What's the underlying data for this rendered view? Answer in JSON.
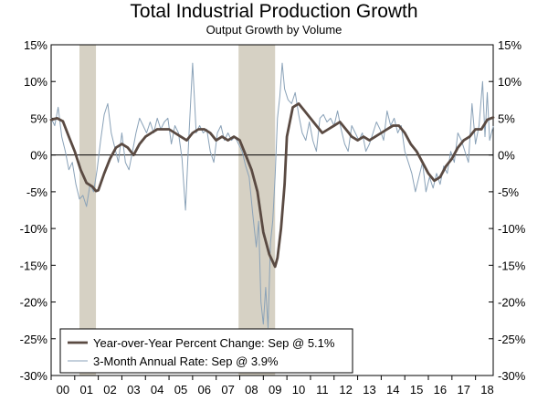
{
  "chart_data": {
    "type": "line",
    "title": "Total Industrial Production Growth",
    "subtitle": "Output Growth by Volume",
    "xlabel": "",
    "ylabel": "",
    "x_range": [
      2000.0,
      2018.75
    ],
    "ylim": [
      -30,
      15
    ],
    "y_ticks": [
      15,
      10,
      5,
      0,
      -5,
      -10,
      -15,
      -20,
      -25,
      -30
    ],
    "y_tick_labels": [
      "15%",
      "10%",
      "5%",
      "0%",
      "-5%",
      "-10%",
      "-15%",
      "-20%",
      "-25%",
      "-30%"
    ],
    "x_tick_labels": [
      "00",
      "01",
      "02",
      "03",
      "04",
      "05",
      "06",
      "07",
      "08",
      "09",
      "10",
      "11",
      "12",
      "13",
      "14",
      "15",
      "16",
      "17",
      "18"
    ],
    "recessions": [
      [
        2001.2,
        2001.9
      ],
      [
        2007.95,
        2009.5
      ]
    ],
    "legend_position": "bottom-left",
    "series": [
      {
        "name": "Year-over-Year Percent Change: Sep @ 5.1%",
        "color": "#5a4a42",
        "style": "thick",
        "points": [
          [
            2000.0,
            4.8
          ],
          [
            2000.25,
            5.0
          ],
          [
            2000.5,
            4.6
          ],
          [
            2000.75,
            2.5
          ],
          [
            2001.0,
            0.5
          ],
          [
            2001.25,
            -2.0
          ],
          [
            2001.5,
            -3.8
          ],
          [
            2001.75,
            -4.3
          ],
          [
            2001.9,
            -4.9
          ],
          [
            2002.0,
            -4.8
          ],
          [
            2002.25,
            -2.5
          ],
          [
            2002.5,
            -0.5
          ],
          [
            2002.75,
            1.0
          ],
          [
            2003.0,
            1.5
          ],
          [
            2003.25,
            1.0
          ],
          [
            2003.5,
            0.0
          ],
          [
            2003.75,
            1.5
          ],
          [
            2004.0,
            2.5
          ],
          [
            2004.25,
            3.0
          ],
          [
            2004.5,
            3.5
          ],
          [
            2004.75,
            3.5
          ],
          [
            2005.0,
            3.5
          ],
          [
            2005.25,
            3.0
          ],
          [
            2005.5,
            2.5
          ],
          [
            2005.75,
            2.0
          ],
          [
            2006.0,
            3.0
          ],
          [
            2006.25,
            3.5
          ],
          [
            2006.5,
            3.5
          ],
          [
            2006.75,
            3.0
          ],
          [
            2007.0,
            2.0
          ],
          [
            2007.25,
            2.5
          ],
          [
            2007.5,
            2.0
          ],
          [
            2007.75,
            2.5
          ],
          [
            2008.0,
            2.0
          ],
          [
            2008.25,
            0.0
          ],
          [
            2008.5,
            -2.0
          ],
          [
            2008.75,
            -5.0
          ],
          [
            2009.0,
            -10.5
          ],
          [
            2009.25,
            -13.5
          ],
          [
            2009.5,
            -15.2
          ],
          [
            2009.6,
            -14.0
          ],
          [
            2009.75,
            -10.0
          ],
          [
            2009.9,
            -4.0
          ],
          [
            2010.0,
            2.5
          ],
          [
            2010.25,
            6.5
          ],
          [
            2010.5,
            7.0
          ],
          [
            2010.75,
            6.0
          ],
          [
            2011.0,
            5.0
          ],
          [
            2011.25,
            4.0
          ],
          [
            2011.5,
            3.0
          ],
          [
            2011.75,
            3.5
          ],
          [
            2012.0,
            4.0
          ],
          [
            2012.25,
            4.5
          ],
          [
            2012.5,
            3.5
          ],
          [
            2012.75,
            2.5
          ],
          [
            2013.0,
            2.0
          ],
          [
            2013.25,
            2.5
          ],
          [
            2013.5,
            2.0
          ],
          [
            2013.75,
            2.5
          ],
          [
            2014.0,
            3.0
          ],
          [
            2014.25,
            3.5
          ],
          [
            2014.5,
            4.0
          ],
          [
            2014.75,
            4.0
          ],
          [
            2015.0,
            3.0
          ],
          [
            2015.25,
            1.5
          ],
          [
            2015.5,
            0.5
          ],
          [
            2015.75,
            -1.0
          ],
          [
            2016.0,
            -2.5
          ],
          [
            2016.25,
            -3.5
          ],
          [
            2016.5,
            -3.0
          ],
          [
            2016.75,
            -1.5
          ],
          [
            2017.0,
            -0.5
          ],
          [
            2017.25,
            1.0
          ],
          [
            2017.5,
            2.0
          ],
          [
            2017.75,
            2.5
          ],
          [
            2018.0,
            3.5
          ],
          [
            2018.25,
            3.5
          ],
          [
            2018.5,
            4.8
          ],
          [
            2018.75,
            5.1
          ]
        ]
      },
      {
        "name": "3-Month Annual Rate: Sep @ 3.9%",
        "color": "#8aa2b8",
        "style": "thin",
        "points": [
          [
            2000.0,
            5.0
          ],
          [
            2000.15,
            4.0
          ],
          [
            2000.3,
            6.5
          ],
          [
            2000.45,
            2.5
          ],
          [
            2000.6,
            0.5
          ],
          [
            2000.75,
            -2.0
          ],
          [
            2000.9,
            -1.0
          ],
          [
            2001.05,
            -4.0
          ],
          [
            2001.2,
            -6.0
          ],
          [
            2001.35,
            -5.5
          ],
          [
            2001.5,
            -7.0
          ],
          [
            2001.65,
            -4.0
          ],
          [
            2001.8,
            -5.0
          ],
          [
            2001.95,
            -2.0
          ],
          [
            2002.1,
            2.0
          ],
          [
            2002.25,
            5.5
          ],
          [
            2002.4,
            7.0
          ],
          [
            2002.55,
            3.0
          ],
          [
            2002.7,
            1.0
          ],
          [
            2002.85,
            -1.0
          ],
          [
            2003.0,
            3.0
          ],
          [
            2003.15,
            -1.0
          ],
          [
            2003.3,
            -2.0
          ],
          [
            2003.45,
            0.5
          ],
          [
            2003.6,
            3.0
          ],
          [
            2003.75,
            5.0
          ],
          [
            2003.9,
            4.0
          ],
          [
            2004.05,
            3.0
          ],
          [
            2004.2,
            4.5
          ],
          [
            2004.35,
            3.0
          ],
          [
            2004.5,
            5.0
          ],
          [
            2004.65,
            3.5
          ],
          [
            2004.8,
            4.5
          ],
          [
            2004.95,
            5.0
          ],
          [
            2005.1,
            1.5
          ],
          [
            2005.25,
            4.0
          ],
          [
            2005.4,
            3.0
          ],
          [
            2005.55,
            -0.5
          ],
          [
            2005.7,
            -7.5
          ],
          [
            2005.85,
            3.0
          ],
          [
            2006.0,
            12.5
          ],
          [
            2006.15,
            3.0
          ],
          [
            2006.3,
            4.0
          ],
          [
            2006.45,
            3.0
          ],
          [
            2006.6,
            3.5
          ],
          [
            2006.75,
            0.5
          ],
          [
            2006.9,
            -1.0
          ],
          [
            2007.05,
            3.0
          ],
          [
            2007.2,
            4.0
          ],
          [
            2007.35,
            2.0
          ],
          [
            2007.5,
            3.0
          ],
          [
            2007.65,
            2.0
          ],
          [
            2007.8,
            2.5
          ],
          [
            2007.95,
            1.5
          ],
          [
            2008.1,
            0.5
          ],
          [
            2008.25,
            -1.5
          ],
          [
            2008.4,
            -3.0
          ],
          [
            2008.55,
            -8.0
          ],
          [
            2008.7,
            -12.5
          ],
          [
            2008.8,
            -9.0
          ],
          [
            2008.9,
            -20.0
          ],
          [
            2009.0,
            -23.0
          ],
          [
            2009.1,
            -18.0
          ],
          [
            2009.2,
            -23.5
          ],
          [
            2009.3,
            -12.0
          ],
          [
            2009.4,
            -9.0
          ],
          [
            2009.5,
            -3.0
          ],
          [
            2009.6,
            5.0
          ],
          [
            2009.7,
            8.0
          ],
          [
            2009.8,
            12.5
          ],
          [
            2009.9,
            9.0
          ],
          [
            2010.05,
            7.5
          ],
          [
            2010.2,
            7.0
          ],
          [
            2010.35,
            8.5
          ],
          [
            2010.5,
            5.5
          ],
          [
            2010.65,
            3.0
          ],
          [
            2010.8,
            2.0
          ],
          [
            2010.95,
            4.5
          ],
          [
            2011.1,
            2.0
          ],
          [
            2011.25,
            0.5
          ],
          [
            2011.4,
            5.0
          ],
          [
            2011.55,
            5.5
          ],
          [
            2011.7,
            4.5
          ],
          [
            2011.85,
            5.0
          ],
          [
            2012.0,
            4.0
          ],
          [
            2012.15,
            6.0
          ],
          [
            2012.3,
            3.5
          ],
          [
            2012.45,
            1.5
          ],
          [
            2012.6,
            0.5
          ],
          [
            2012.75,
            4.0
          ],
          [
            2012.9,
            3.0
          ],
          [
            2013.05,
            2.0
          ],
          [
            2013.2,
            3.0
          ],
          [
            2013.35,
            0.5
          ],
          [
            2013.5,
            1.5
          ],
          [
            2013.65,
            3.0
          ],
          [
            2013.8,
            4.5
          ],
          [
            2013.95,
            3.5
          ],
          [
            2014.1,
            2.0
          ],
          [
            2014.25,
            6.0
          ],
          [
            2014.4,
            4.0
          ],
          [
            2014.55,
            5.0
          ],
          [
            2014.7,
            3.0
          ],
          [
            2014.85,
            4.0
          ],
          [
            2015.0,
            0.5
          ],
          [
            2015.15,
            -1.0
          ],
          [
            2015.3,
            -2.5
          ],
          [
            2015.45,
            -5.0
          ],
          [
            2015.6,
            -3.0
          ],
          [
            2015.75,
            -1.0
          ],
          [
            2015.9,
            -5.0
          ],
          [
            2016.05,
            -3.0
          ],
          [
            2016.2,
            -4.5
          ],
          [
            2016.35,
            -2.5
          ],
          [
            2016.5,
            -4.0
          ],
          [
            2016.65,
            -1.5
          ],
          [
            2016.8,
            -2.5
          ],
          [
            2016.95,
            0.5
          ],
          [
            2017.1,
            -1.0
          ],
          [
            2017.25,
            3.0
          ],
          [
            2017.4,
            2.0
          ],
          [
            2017.55,
            0.5
          ],
          [
            2017.7,
            -1.0
          ],
          [
            2017.85,
            7.0
          ],
          [
            2018.0,
            1.5
          ],
          [
            2018.15,
            4.0
          ],
          [
            2018.3,
            10.0
          ],
          [
            2018.4,
            2.5
          ],
          [
            2018.5,
            8.5
          ],
          [
            2018.6,
            2.0
          ],
          [
            2018.75,
            3.9
          ]
        ]
      }
    ]
  }
}
